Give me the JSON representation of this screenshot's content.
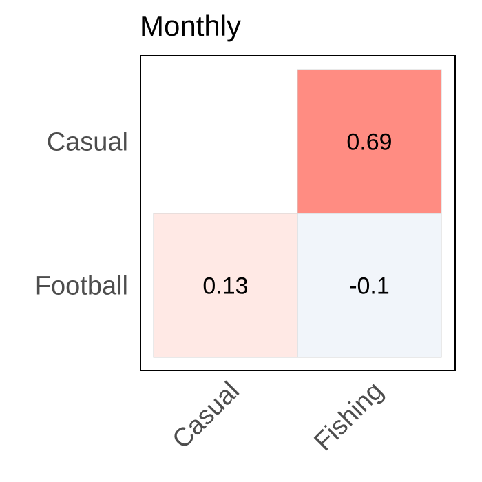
{
  "chart_data": {
    "type": "heatmap",
    "title": "Monthly",
    "x_categories": [
      "Casual",
      "Fishing"
    ],
    "y_categories": [
      "Casual",
      "Football"
    ],
    "cells": [
      {
        "x": "Fishing",
        "y": "Casual",
        "value": 0.69,
        "label": "0.69",
        "color": "#ff8c82"
      },
      {
        "x": "Casual",
        "y": "Football",
        "value": 0.13,
        "label": "0.13",
        "color": "#ffe9e5"
      },
      {
        "x": "Fishing",
        "y": "Football",
        "value": -0.1,
        "label": "-0.1",
        "color": "#f1f5fa"
      }
    ],
    "grid": false,
    "legend": "none"
  }
}
